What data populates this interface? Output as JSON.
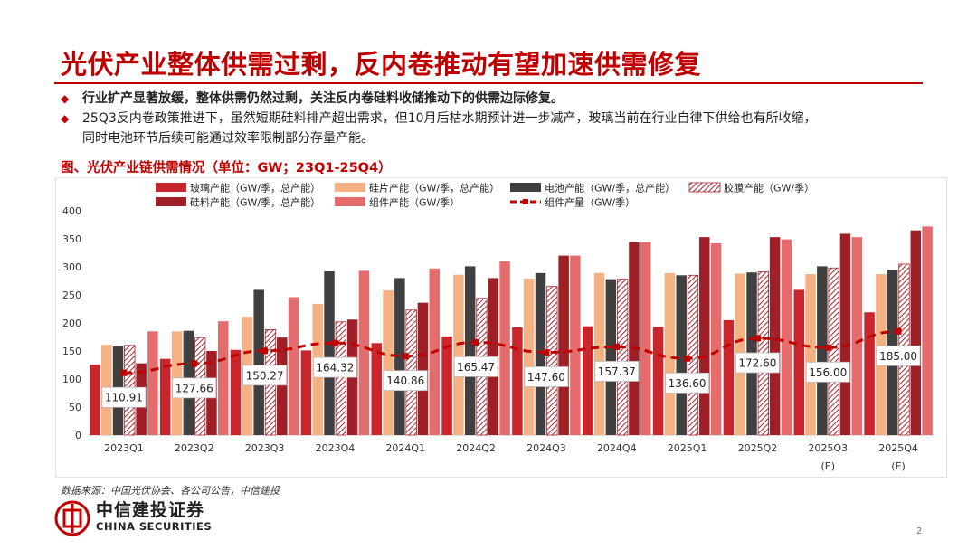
{
  "header": {
    "title": "光伏产业整体供需过剩，反内卷推动有望加速供需修复"
  },
  "bullets": [
    {
      "text": "行业扩产显著放缓，整体供需仍然过剩，关注反内卷硅料收储推动下的供需边际修复。"
    },
    {
      "text": "25Q3反内卷政策推进下，虽然短期硅料排产超出需求，但10月后枯水期预计进一步减产，玻璃当前在行业自律下供给也有所收缩，",
      "text2": "同时电池环节后续可能通过效率限制部分存量产能。"
    }
  ],
  "figure_title": "图、光伏产业链供需情况（单位：GW；23Q1-25Q4）",
  "source": "数据来源：中国光伏协会、各公司公告，中信建投",
  "logo": {
    "cn": "中信建投证券",
    "en": "CHINA SECURITIES"
  },
  "page_number": "2",
  "colors": {
    "glass": "#c9252c",
    "wafer": "#f4b183",
    "cell": "#404040",
    "film_hatch": "#a3242e",
    "polysilicon": "#9e1f26",
    "module": "#e46c6c",
    "module_output": "#c00000",
    "accent": "#c00000"
  },
  "chart_data": {
    "type": "bar",
    "categories": [
      "2023Q1",
      "2023Q2",
      "2023Q3",
      "2023Q4",
      "2024Q1",
      "2024Q2",
      "2024Q3",
      "2024Q4",
      "2025Q1",
      "2025Q2",
      "2025Q3",
      "2025Q4"
    ],
    "category_sublabels": [
      "",
      "",
      "",
      "",
      "",
      "",
      "",
      "",
      "",
      "",
      "(E)",
      "(E)"
    ],
    "ylim": [
      0,
      400
    ],
    "yticks": [
      0,
      50,
      100,
      150,
      200,
      250,
      300,
      350,
      400
    ],
    "legend_position": "top",
    "grid": false,
    "series": [
      {
        "name": "玻璃产能（GW/季，总产能）",
        "kind": "bar",
        "color": "#c9252c",
        "values": [
          126,
          136,
          152,
          151,
          164,
          176,
          192,
          194,
          193,
          205,
          259,
          219
        ]
      },
      {
        "name": "硅片产能（GW/季，总产能）",
        "kind": "bar",
        "color": "#f4b183",
        "values": [
          161,
          185,
          211,
          234,
          258,
          286,
          279,
          289,
          289,
          288,
          287,
          287
        ]
      },
      {
        "name": "电池产能（GW/季，总产能）",
        "kind": "bar",
        "color": "#404040",
        "values": [
          158,
          186,
          259,
          292,
          280,
          301,
          289,
          278,
          285,
          290,
          301,
          295
        ]
      },
      {
        "name": "胶膜产能（GW/季）",
        "kind": "hatch",
        "color": "#a3242e",
        "values": [
          160,
          174,
          188,
          202,
          223,
          244,
          265,
          278,
          285,
          291,
          298,
          305
        ]
      },
      {
        "name": "硅料产能（GW/季，总产能）",
        "kind": "bar",
        "color": "#9e1f26",
        "values": [
          128,
          150,
          174,
          206,
          236,
          280,
          320,
          344,
          353,
          353,
          359,
          365
        ]
      },
      {
        "name": "组件产能（GW/季）",
        "kind": "bar",
        "color": "#e46c6c",
        "values": [
          185,
          203,
          246,
          293,
          297,
          310,
          320,
          344,
          342,
          349,
          353,
          372
        ]
      },
      {
        "name": "组件产量（GW/季）",
        "kind": "line",
        "color": "#c00000",
        "values": [
          110.91,
          127.66,
          150.27,
          164.32,
          140.86,
          165.47,
          147.6,
          157.37,
          136.6,
          172.6,
          156.0,
          185.0
        ],
        "labels": [
          "110.91",
          "127.66",
          "150.27",
          "164.32",
          "140.86",
          "165.47",
          "147.60",
          "157.37",
          "136.60",
          "172.60",
          "156.00",
          "185.00"
        ]
      }
    ]
  }
}
